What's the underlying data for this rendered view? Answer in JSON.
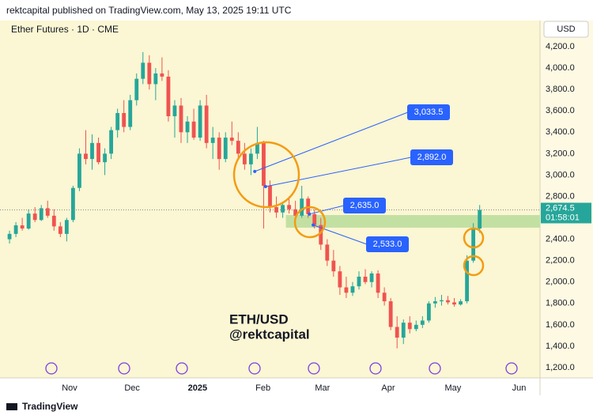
{
  "header": {
    "published": "rektcapital published on TradingView.com, May 13, 2025 19:11 UTC"
  },
  "footer": {
    "brand": "TradingView"
  },
  "chart_data": {
    "type": "candlestick",
    "title": "Ether Futures · 1D · CME",
    "currency": "USD",
    "annotations": [
      "ETH/USD",
      "@rektcapital"
    ],
    "up_color": "#26a69a",
    "down_color": "#ef5350",
    "grid": false,
    "xlim": [
      -1.5,
      83.5
    ],
    "xticks": [
      {
        "value": 9.45,
        "label": "Nov"
      },
      {
        "value": 19.3,
        "label": "Dec"
      },
      {
        "value": 29.6,
        "label": "2025"
      },
      {
        "value": 39.9,
        "label": "Feb"
      },
      {
        "value": 49.25,
        "label": "Mar"
      },
      {
        "value": 59.6,
        "label": "Apr"
      },
      {
        "value": 69.8,
        "label": "May"
      },
      {
        "value": 80.2,
        "label": "Jun"
      }
    ],
    "ylim": [
      1089,
      4267
    ],
    "yticks": [
      {
        "value": 4200,
        "label": "4,200.0"
      },
      {
        "value": 4000,
        "label": "4,000.0"
      },
      {
        "value": 3800,
        "label": "3,800.0"
      },
      {
        "value": 3600,
        "label": "3,600.0"
      },
      {
        "value": 3400,
        "label": "3,400.0"
      },
      {
        "value": 3200,
        "label": "3,200.0"
      },
      {
        "value": 3000,
        "label": "3,000.0"
      },
      {
        "value": 2800,
        "label": "2,800.0"
      },
      {
        "value": 2600,
        "label": "2,600.0"
      },
      {
        "value": 2400,
        "label": "2,400.0"
      },
      {
        "value": 2200,
        "label": "2,200.0"
      },
      {
        "value": 2000,
        "label": "2,000.0"
      },
      {
        "value": 1800,
        "label": "1,800.0"
      },
      {
        "value": 1600,
        "label": "1,600.0"
      },
      {
        "value": 1400,
        "label": "1,400.0"
      },
      {
        "value": 1200,
        "label": "1,200.0"
      }
    ],
    "candles": [
      [
        2400,
        2480,
        2360,
        2450
      ],
      [
        2450,
        2560,
        2420,
        2530
      ],
      [
        2530,
        2600,
        2480,
        2500
      ],
      [
        2500,
        2680,
        2490,
        2640
      ],
      [
        2640,
        2700,
        2560,
        2580
      ],
      [
        2580,
        2720,
        2570,
        2690
      ],
      [
        2690,
        2760,
        2600,
        2620
      ],
      [
        2620,
        2680,
        2480,
        2520
      ],
      [
        2520,
        2560,
        2420,
        2450
      ],
      [
        2450,
        2600,
        2380,
        2580
      ],
      [
        2580,
        2900,
        2560,
        2880
      ],
      [
        2880,
        3250,
        2850,
        3200
      ],
      [
        3200,
        3420,
        3100,
        3150
      ],
      [
        3150,
        3380,
        3050,
        3300
      ],
      [
        3300,
        3350,
        3100,
        3120
      ],
      [
        3120,
        3250,
        3000,
        3200
      ],
      [
        3200,
        3450,
        3150,
        3420
      ],
      [
        3420,
        3620,
        3350,
        3580
      ],
      [
        3580,
        3700,
        3400,
        3450
      ],
      [
        3450,
        3750,
        3420,
        3700
      ],
      [
        3700,
        3950,
        3650,
        3900
      ],
      [
        3900,
        4150,
        3850,
        4050
      ],
      [
        4050,
        4120,
        3800,
        3850
      ],
      [
        3850,
        4000,
        3700,
        3950
      ],
      [
        3950,
        4100,
        3880,
        3920
      ],
      [
        3920,
        3980,
        3500,
        3550
      ],
      [
        3550,
        3700,
        3350,
        3650
      ],
      [
        3650,
        3720,
        3300,
        3400
      ],
      [
        3400,
        3550,
        3300,
        3500
      ],
      [
        3500,
        3620,
        3330,
        3350
      ],
      [
        3350,
        3700,
        3320,
        3650
      ],
      [
        3650,
        3750,
        3250,
        3300
      ],
      [
        3300,
        3450,
        3150,
        3350
      ],
      [
        3350,
        3400,
        3050,
        3150
      ],
      [
        3150,
        3400,
        3120,
        3350
      ],
      [
        3350,
        3500,
        3280,
        3320
      ],
      [
        3320,
        3400,
        3150,
        3200
      ],
      [
        3200,
        3300,
        3050,
        3100
      ],
      [
        3100,
        3250,
        3000,
        3200
      ],
      [
        3200,
        3450,
        3150,
        3300
      ],
      [
        3300,
        3320,
        2500,
        2900
      ],
      [
        2900,
        2950,
        2650,
        2700
      ],
      [
        2700,
        2800,
        2600,
        2650
      ],
      [
        2650,
        2750,
        2600,
        2720
      ],
      [
        2720,
        2800,
        2640,
        2680
      ],
      [
        2680,
        2760,
        2600,
        2620
      ],
      [
        2620,
        2900,
        2600,
        2780
      ],
      [
        2780,
        2800,
        2600,
        2635
      ],
      [
        2635,
        2680,
        2500,
        2533
      ],
      [
        2533,
        2600,
        2300,
        2350
      ],
      [
        2350,
        2400,
        2150,
        2200
      ],
      [
        2200,
        2300,
        2050,
        2100
      ],
      [
        2100,
        2150,
        1880,
        1950
      ],
      [
        1950,
        2050,
        1850,
        1900
      ],
      [
        1900,
        2000,
        1870,
        1960
      ],
      [
        1960,
        2100,
        1930,
        2050
      ],
      [
        2050,
        2120,
        1980,
        2000
      ],
      [
        2000,
        2100,
        1950,
        2080
      ],
      [
        2080,
        2110,
        1850,
        1900
      ],
      [
        1900,
        1950,
        1780,
        1820
      ],
      [
        1820,
        1850,
        1550,
        1580
      ],
      [
        1580,
        1680,
        1380,
        1480
      ],
      [
        1480,
        1650,
        1420,
        1620
      ],
      [
        1620,
        1680,
        1520,
        1560
      ],
      [
        1560,
        1640,
        1540,
        1600
      ],
      [
        1600,
        1680,
        1570,
        1640
      ],
      [
        1640,
        1820,
        1620,
        1800
      ],
      [
        1800,
        1860,
        1760,
        1820
      ],
      [
        1820,
        1880,
        1780,
        1830
      ],
      [
        1830,
        1870,
        1790,
        1810
      ],
      [
        1810,
        1850,
        1770,
        1790
      ],
      [
        1790,
        1840,
        1780,
        1820
      ],
      [
        1820,
        2250,
        1800,
        2200
      ],
      [
        2200,
        2550,
        2180,
        2500
      ],
      [
        2500,
        2720,
        2460,
        2674.5
      ]
    ],
    "zone": {
      "low": 2508,
      "high": 2626,
      "from": 43.5,
      "color": "#b9dc9a"
    },
    "callouts": [
      {
        "value": 3033.5,
        "label": "3,033.5",
        "x": 38.6
      },
      {
        "value": 2892.0,
        "label": "2,892.0",
        "x": 40.3
      },
      {
        "value": 2635.0,
        "label": "2,635.0",
        "x": 47.2
      },
      {
        "value": 2533.0,
        "label": "2,533.0",
        "x": 47.8
      }
    ],
    "callout_color": "#2962ff",
    "last_price": {
      "value": 2674.5,
      "label": "2,674.5"
    },
    "countdown": "01:58:01"
  }
}
